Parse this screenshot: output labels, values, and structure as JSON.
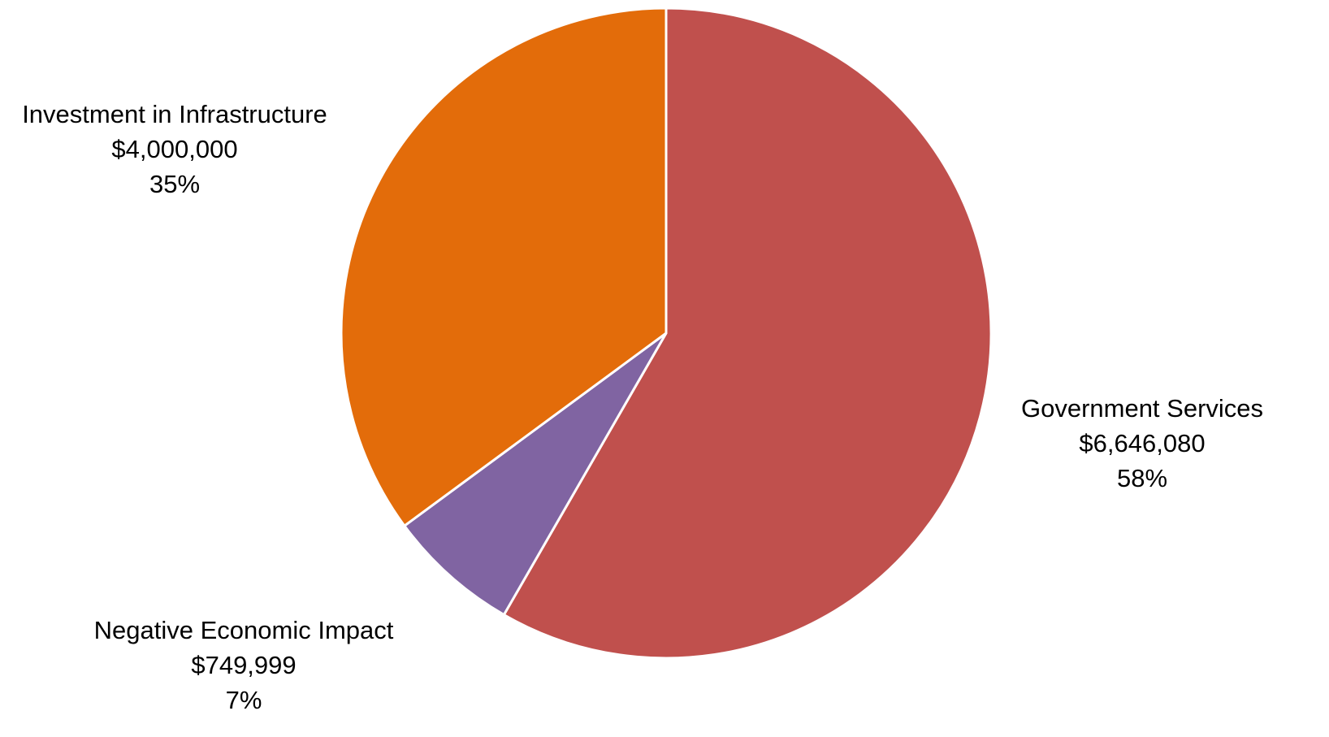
{
  "chart_data": {
    "type": "pie",
    "title": "",
    "start_angle_deg": 0,
    "direction": "clockwise",
    "slices": [
      {
        "name": "Government Services",
        "value": 6646080,
        "value_label": "$6,646,080",
        "percent_label": "58%",
        "color": "#C0504D",
        "label_side": "right"
      },
      {
        "name": "Negative Economic Impact",
        "value": 749999,
        "value_label": "$749,999",
        "percent_label": "7%",
        "color": "#8064A2",
        "label_side": "bottom-left"
      },
      {
        "name": "Investment in Infrastructure",
        "value": 4000000,
        "value_label": "$4,000,000",
        "percent_label": "35%",
        "color": "#E36C0A",
        "label_side": "top-left"
      }
    ],
    "legend": "none"
  }
}
